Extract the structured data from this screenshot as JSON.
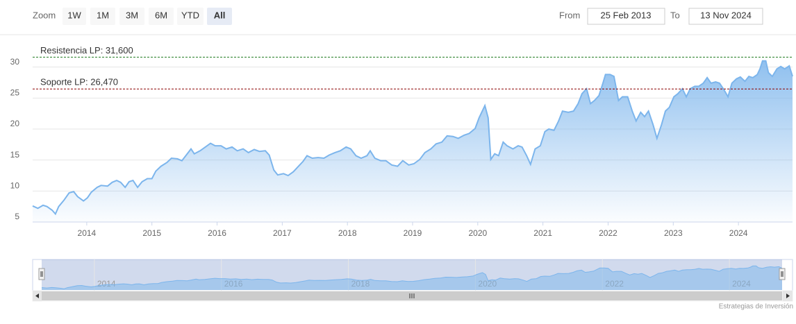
{
  "chart_data": {
    "type": "area",
    "range_selector": {
      "label": "Zoom",
      "buttons": [
        "1W",
        "1M",
        "3M",
        "6M",
        "YTD",
        "All"
      ],
      "selected": 5,
      "from_label": "From",
      "from": "25 Feb 2013",
      "to_label": "To",
      "to": "13 Nov 2024"
    },
    "credits": "Estrategias de Inversión",
    "color": "#7cb5ec",
    "xlim": [
      2013.17,
      2024.83
    ],
    "xticks": [
      2014,
      2015,
      2016,
      2017,
      2018,
      2019,
      2020,
      2021,
      2022,
      2023,
      2024
    ],
    "navigator_xticks": [
      2014,
      2016,
      2018,
      2020,
      2022,
      2024
    ],
    "ylim": [
      5,
      35
    ],
    "yticks": [
      5,
      10,
      15,
      20,
      25,
      30
    ],
    "grid": true,
    "plot_lines": [
      {
        "value": 31.6,
        "label": "Resistencia LP: 31,600",
        "color": "#1f7a1f"
      },
      {
        "value": 26.47,
        "label": "Soporte LP: 26,470",
        "color": "#8b0000"
      }
    ],
    "x": [
      2013.17,
      2013.25,
      2013.33,
      2013.39,
      2013.47,
      2013.52,
      2013.57,
      2013.65,
      2013.73,
      2013.8,
      2013.86,
      2013.95,
      2014.01,
      2014.07,
      2014.16,
      2014.22,
      2014.32,
      2014.39,
      2014.46,
      2014.52,
      2014.59,
      2014.65,
      2014.71,
      2014.78,
      2014.85,
      2014.93,
      2015.0,
      2015.06,
      2015.14,
      2015.23,
      2015.3,
      2015.39,
      2015.46,
      2015.52,
      2015.6,
      2015.65,
      2015.74,
      2015.82,
      2015.9,
      2015.97,
      2016.06,
      2016.14,
      2016.23,
      2016.31,
      2016.4,
      2016.48,
      2016.57,
      2016.65,
      2016.74,
      2016.8,
      2016.87,
      2016.93,
      2017.02,
      2017.09,
      2017.17,
      2017.25,
      2017.32,
      2017.38,
      2017.46,
      2017.55,
      2017.64,
      2017.72,
      2017.81,
      2017.89,
      2017.98,
      2018.05,
      2018.13,
      2018.21,
      2018.3,
      2018.35,
      2018.42,
      2018.51,
      2018.59,
      2018.68,
      2018.77,
      2018.85,
      2018.94,
      2019.02,
      2019.11,
      2019.19,
      2019.28,
      2019.36,
      2019.45,
      2019.53,
      2019.62,
      2019.7,
      2019.79,
      2019.87,
      2019.96,
      2020.02,
      2020.11,
      2020.16,
      2020.2,
      2020.26,
      2020.32,
      2020.39,
      2020.45,
      2020.54,
      2020.62,
      2020.68,
      2020.75,
      2020.81,
      2020.88,
      2020.96,
      2021.03,
      2021.09,
      2021.17,
      2021.24,
      2021.3,
      2021.39,
      2021.47,
      2021.54,
      2021.6,
      2021.67,
      2021.73,
      2021.79,
      2021.86,
      2021.92,
      2021.96,
      2022.03,
      2022.09,
      2022.16,
      2022.22,
      2022.3,
      2022.37,
      2022.43,
      2022.5,
      2022.56,
      2022.62,
      2022.69,
      2022.75,
      2022.82,
      2022.88,
      2022.94,
      2023.01,
      2023.07,
      2023.14,
      2023.2,
      2023.26,
      2023.33,
      2023.39,
      2023.46,
      2023.52,
      2023.58,
      2023.65,
      2023.71,
      2023.78,
      2023.84,
      2023.9,
      2023.97,
      2024.03,
      2024.1,
      2024.16,
      2024.22,
      2024.29,
      2024.33,
      2024.37,
      2024.42,
      2024.46,
      2024.52,
      2024.59,
      2024.65,
      2024.71,
      2024.78,
      2024.83
    ],
    "values": [
      7.6,
      7.2,
      7.7,
      7.5,
      6.9,
      6.3,
      7.5,
      8.5,
      9.7,
      9.9,
      9.1,
      8.4,
      8.9,
      9.8,
      10.6,
      10.9,
      10.8,
      11.4,
      11.7,
      11.4,
      10.6,
      11.5,
      11.7,
      10.6,
      11.5,
      12.0,
      12.0,
      13.2,
      14.0,
      14.6,
      15.3,
      15.2,
      14.9,
      15.7,
      16.8,
      16.0,
      16.5,
      17.1,
      17.7,
      17.3,
      17.3,
      16.8,
      17.1,
      16.5,
      16.8,
      16.2,
      16.7,
      16.4,
      16.5,
      15.8,
      13.4,
      12.6,
      12.8,
      12.5,
      13.1,
      14.0,
      14.8,
      15.7,
      15.3,
      15.4,
      15.3,
      15.8,
      16.2,
      16.5,
      17.1,
      16.8,
      15.7,
      15.3,
      15.7,
      16.5,
      15.3,
      14.9,
      14.9,
      14.2,
      14.0,
      14.9,
      14.2,
      14.4,
      15.1,
      16.2,
      16.8,
      17.6,
      17.9,
      18.9,
      18.8,
      18.5,
      19.0,
      19.3,
      20.1,
      21.8,
      23.8,
      21.8,
      15.1,
      16.0,
      15.7,
      17.9,
      17.3,
      16.8,
      17.3,
      17.1,
      15.7,
      14.3,
      16.8,
      17.3,
      19.6,
      20.0,
      19.8,
      21.3,
      22.9,
      22.7,
      22.9,
      24.1,
      25.7,
      26.5,
      24.1,
      24.6,
      25.4,
      27.4,
      28.8,
      28.8,
      28.5,
      24.6,
      25.2,
      25.2,
      22.9,
      21.3,
      22.7,
      22.0,
      22.9,
      20.7,
      18.5,
      20.7,
      22.9,
      23.5,
      25.2,
      25.7,
      26.5,
      25.2,
      26.5,
      26.9,
      26.9,
      27.4,
      28.3,
      27.4,
      27.6,
      27.4,
      26.3,
      25.2,
      27.4,
      28.1,
      28.4,
      27.7,
      28.5,
      28.3,
      28.8,
      29.7,
      31.0,
      31.0,
      29.1,
      28.5,
      29.7,
      30.1,
      29.7,
      30.2,
      28.5
    ]
  }
}
